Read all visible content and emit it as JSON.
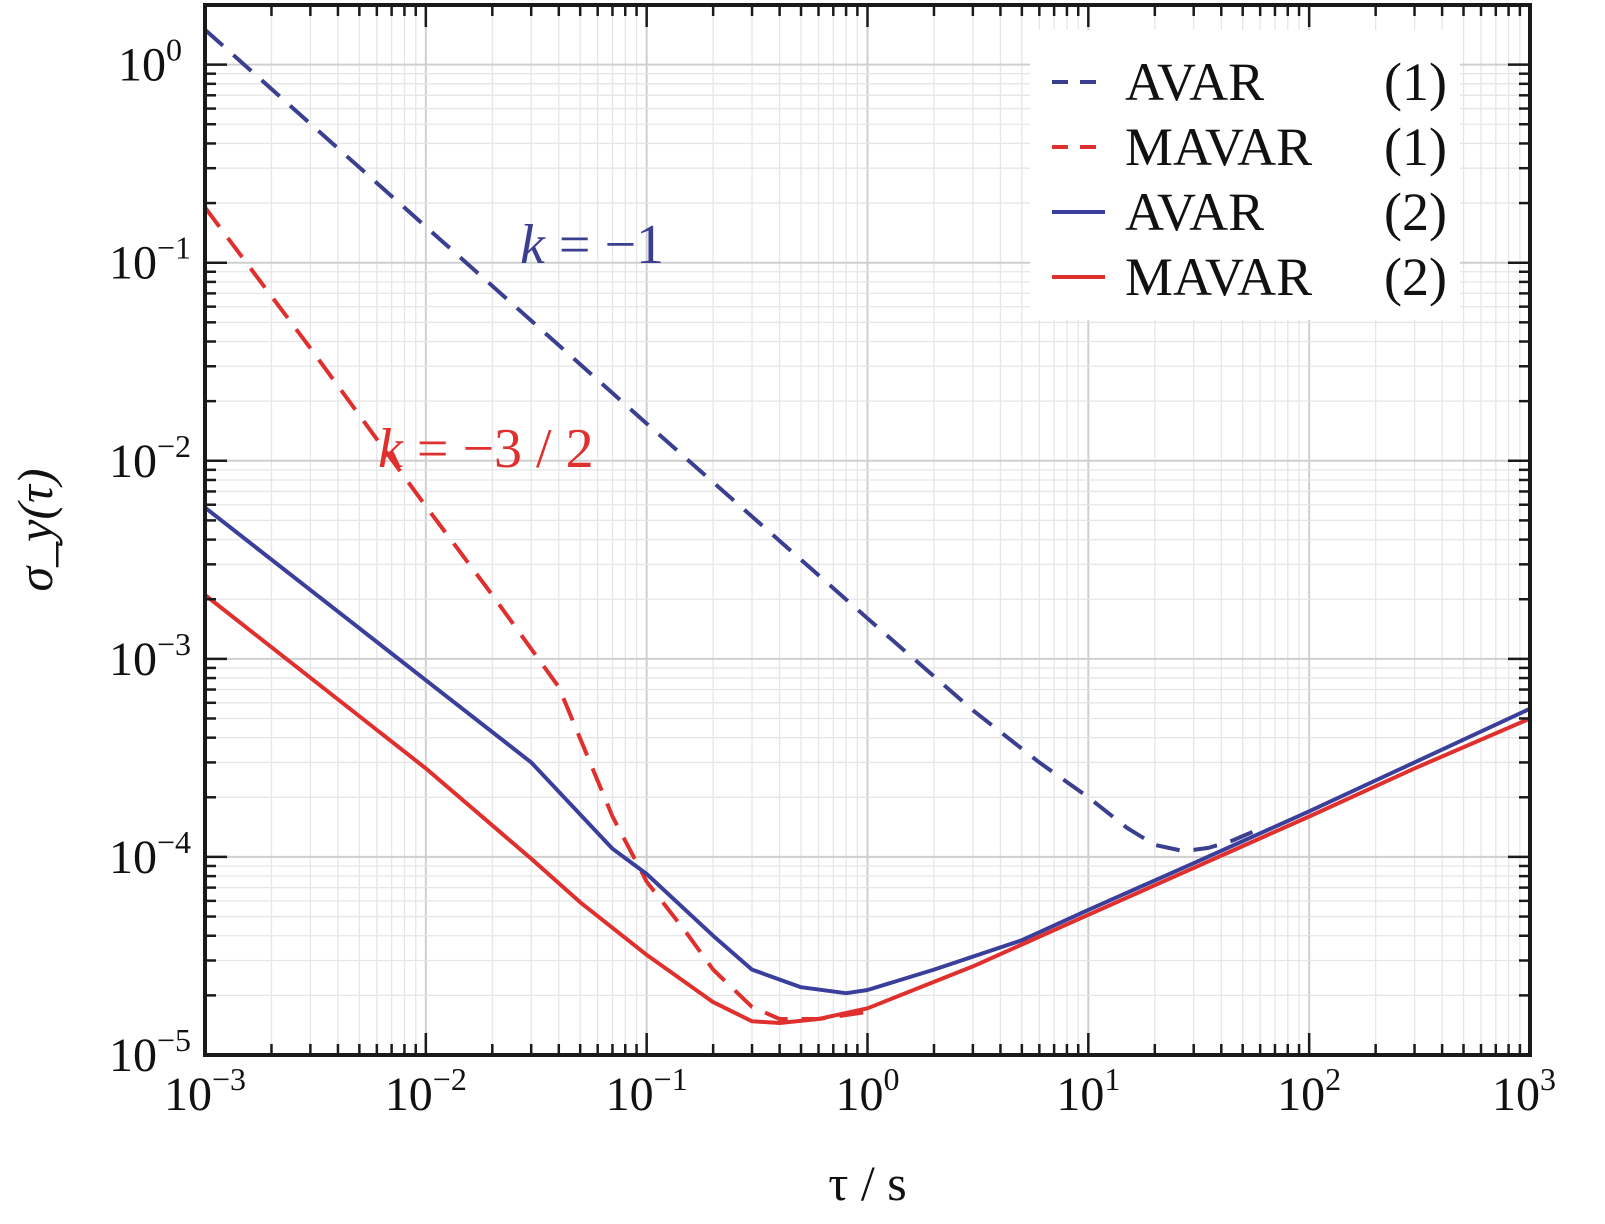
{
  "chart_data": {
    "type": "line",
    "xscale": "log",
    "yscale": "log",
    "xlim": [
      0.001,
      1000
    ],
    "ylim": [
      1e-05,
      2
    ],
    "xlabel": "τ / s",
    "ylabel": "σ_y(τ)",
    "grid": true,
    "legend": "top-right",
    "x_ticks": [
      {
        "value": 0.001,
        "base": "10",
        "exp": "−3"
      },
      {
        "value": 0.01,
        "base": "10",
        "exp": "−2"
      },
      {
        "value": 0.1,
        "base": "10",
        "exp": "−1"
      },
      {
        "value": 1,
        "base": "10",
        "exp": "0"
      },
      {
        "value": 10,
        "base": "10",
        "exp": "1"
      },
      {
        "value": 100,
        "base": "10",
        "exp": "2"
      },
      {
        "value": 1000,
        "base": "10",
        "exp": "3"
      }
    ],
    "y_ticks": [
      {
        "value": 1e-05,
        "base": "10",
        "exp": "−5"
      },
      {
        "value": 0.0001,
        "base": "10",
        "exp": "−4"
      },
      {
        "value": 0.001,
        "base": "10",
        "exp": "−3"
      },
      {
        "value": 0.01,
        "base": "10",
        "exp": "−2"
      },
      {
        "value": 0.1,
        "base": "10",
        "exp": "−1"
      },
      {
        "value": 1,
        "base": "10",
        "exp": "0"
      }
    ],
    "series": [
      {
        "name": "AVAR",
        "ref": "(1)",
        "color": "#3b3f8f",
        "dash": true,
        "points": [
          [
            0.001,
            1.5
          ],
          [
            0.01,
            0.152
          ],
          [
            0.1,
            0.0154
          ],
          [
            1,
            0.0016
          ],
          [
            3,
            0.00055
          ],
          [
            6,
            0.0003
          ],
          [
            10,
            0.0002
          ],
          [
            15,
            0.00014
          ],
          [
            20,
            0.000115
          ],
          [
            27,
            0.000107
          ],
          [
            35,
            0.000111
          ],
          [
            45,
            0.000121
          ],
          [
            60,
            0.000139
          ]
        ]
      },
      {
        "name": "MAVAR",
        "ref": "(1)",
        "color": "#e0302e",
        "dash": true,
        "points": [
          [
            0.001,
            0.19
          ],
          [
            0.003,
            0.037
          ],
          [
            0.01,
            0.0059
          ],
          [
            0.02,
            0.0021
          ],
          [
            0.04,
            0.00072
          ],
          [
            0.07,
            0.00016
          ],
          [
            0.1,
            7.5e-05
          ],
          [
            0.15,
            4.2e-05
          ],
          [
            0.2,
            2.7e-05
          ],
          [
            0.3,
            1.75e-05
          ],
          [
            0.4,
            1.52e-05
          ],
          [
            0.6,
            1.52e-05
          ],
          [
            1,
            1.65e-05
          ]
        ]
      },
      {
        "name": "AVAR",
        "ref": "(2)",
        "color": "#3b3f9c",
        "dash": false,
        "points": [
          [
            0.001,
            0.0058
          ],
          [
            0.01,
            0.00078
          ],
          [
            0.03,
            0.0003
          ],
          [
            0.07,
            0.00011
          ],
          [
            0.1,
            8.2e-05
          ],
          [
            0.2,
            4e-05
          ],
          [
            0.3,
            2.7e-05
          ],
          [
            0.5,
            2.2e-05
          ],
          [
            0.8,
            2.05e-05
          ],
          [
            1,
            2.13e-05
          ],
          [
            2,
            2.7e-05
          ],
          [
            5,
            3.8e-05
          ],
          [
            10,
            5.4e-05
          ],
          [
            30,
            9.3e-05
          ],
          [
            100,
            0.00017
          ],
          [
            300,
            0.0003
          ],
          [
            1000,
            0.00056
          ]
        ]
      },
      {
        "name": "MAVAR",
        "ref": "(2)",
        "color": "#e0302e",
        "dash": false,
        "points": [
          [
            0.001,
            0.0021
          ],
          [
            0.01,
            0.00028
          ],
          [
            0.03,
            9.8e-05
          ],
          [
            0.05,
            5.9e-05
          ],
          [
            0.1,
            3.2e-05
          ],
          [
            0.2,
            1.85e-05
          ],
          [
            0.3,
            1.48e-05
          ],
          [
            0.4,
            1.45e-05
          ],
          [
            0.6,
            1.52e-05
          ],
          [
            1,
            1.72e-05
          ],
          [
            3,
            2.8e-05
          ],
          [
            10,
            5.1e-05
          ],
          [
            30,
            8.8e-05
          ],
          [
            100,
            0.00016
          ],
          [
            300,
            0.00028
          ],
          [
            1000,
            0.0005
          ]
        ]
      }
    ],
    "annotations": [
      {
        "italic": "k",
        "rest": " = −1",
        "color": "#3b3f8f"
      },
      {
        "italic": "k",
        "rest": " = −3 / 2",
        "color": "#e0302e"
      }
    ]
  }
}
